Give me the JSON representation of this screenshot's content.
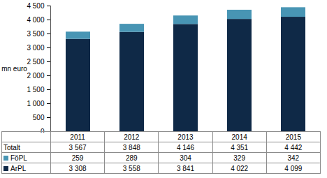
{
  "chart_data": {
    "type": "bar",
    "stacked": true,
    "y_label": "mn euro",
    "categories": [
      "2011",
      "2012",
      "2013",
      "2014",
      "2015"
    ],
    "series": [
      {
        "name": "ArPL",
        "color": "#0f2947",
        "values": [
          3308,
          3558,
          3841,
          4022,
          4099
        ],
        "value_labels": [
          "3 308",
          "3 558",
          "3 841",
          "4 022",
          "4 099"
        ]
      },
      {
        "name": "FöPL",
        "color": "#4895b4",
        "values": [
          259,
          289,
          304,
          329,
          342
        ]
      }
    ],
    "totals": {
      "name": "Totalt",
      "values": [
        3567,
        3848,
        4146,
        4351,
        4442
      ],
      "value_labels": [
        "3 567",
        "3 848",
        "4 146",
        "4 351",
        "4 442"
      ]
    },
    "ylim": [
      0,
      4500
    ],
    "yticks": [
      0,
      500,
      {
        "value": 1000,
        "label": "1 000"
      },
      {
        "value": 1500,
        "label": "1 500"
      },
      {
        "value": 2000,
        "label": "2 000"
      },
      {
        "value": 2500,
        "label": "2 500"
      },
      {
        "value": 3000,
        "label": "3 000"
      },
      {
        "value": 3500,
        "label": "3 500"
      },
      {
        "value": 4000,
        "label": "4 000"
      },
      {
        "value": 4500,
        "label": "4 500"
      }
    ],
    "grid": false
  }
}
